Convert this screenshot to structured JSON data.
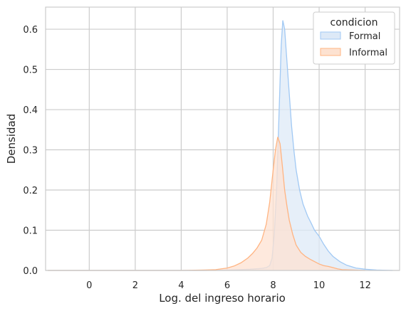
{
  "chart_data": {
    "type": "area",
    "title": "",
    "xlabel": "Log. del ingreso horario",
    "ylabel": "Densidad",
    "xlim": [
      -1.9,
      13.5
    ],
    "ylim": [
      0,
      0.655
    ],
    "xticks": [
      0,
      2,
      4,
      6,
      8,
      10,
      12
    ],
    "yticks": [
      0.0,
      0.1,
      0.2,
      0.3,
      0.4,
      0.5,
      0.6
    ],
    "grid": true,
    "legend": {
      "title": "condicion",
      "placement": "top-right"
    },
    "series": [
      {
        "name": "Formal",
        "color": "#a1c9f4",
        "fill": "#dde9f7",
        "points": [
          [
            -1.8,
            0
          ],
          [
            5.0,
            0
          ],
          [
            6.0,
            0.001
          ],
          [
            6.5,
            0.002
          ],
          [
            7.0,
            0.003
          ],
          [
            7.5,
            0.005
          ],
          [
            7.7,
            0.007
          ],
          [
            7.85,
            0.012
          ],
          [
            7.95,
            0.03
          ],
          [
            8.05,
            0.09
          ],
          [
            8.15,
            0.2
          ],
          [
            8.25,
            0.38
          ],
          [
            8.35,
            0.56
          ],
          [
            8.42,
            0.622
          ],
          [
            8.5,
            0.6
          ],
          [
            8.6,
            0.52
          ],
          [
            8.7,
            0.44
          ],
          [
            8.8,
            0.36
          ],
          [
            8.9,
            0.3
          ],
          [
            9.0,
            0.25
          ],
          [
            9.15,
            0.2
          ],
          [
            9.3,
            0.165
          ],
          [
            9.5,
            0.135
          ],
          [
            9.65,
            0.118
          ],
          [
            9.8,
            0.1
          ],
          [
            10.0,
            0.085
          ],
          [
            10.2,
            0.065
          ],
          [
            10.4,
            0.048
          ],
          [
            10.6,
            0.035
          ],
          [
            10.9,
            0.022
          ],
          [
            11.2,
            0.013
          ],
          [
            11.6,
            0.006
          ],
          [
            12.0,
            0.003
          ],
          [
            12.5,
            0.001
          ],
          [
            13.2,
            0
          ]
        ]
      },
      {
        "name": "Informal",
        "color": "#ffb482",
        "fill": "#fde2d1",
        "points": [
          [
            -1.8,
            0
          ],
          [
            4.0,
            0
          ],
          [
            5.0,
            0.001
          ],
          [
            5.5,
            0.002
          ],
          [
            6.0,
            0.006
          ],
          [
            6.3,
            0.011
          ],
          [
            6.6,
            0.019
          ],
          [
            6.9,
            0.031
          ],
          [
            7.1,
            0.042
          ],
          [
            7.3,
            0.056
          ],
          [
            7.5,
            0.075
          ],
          [
            7.7,
            0.115
          ],
          [
            7.85,
            0.17
          ],
          [
            8.0,
            0.25
          ],
          [
            8.1,
            0.3
          ],
          [
            8.2,
            0.332
          ],
          [
            8.3,
            0.315
          ],
          [
            8.4,
            0.26
          ],
          [
            8.5,
            0.2
          ],
          [
            8.6,
            0.16
          ],
          [
            8.7,
            0.125
          ],
          [
            8.85,
            0.09
          ],
          [
            9.0,
            0.063
          ],
          [
            9.2,
            0.045
          ],
          [
            9.4,
            0.035
          ],
          [
            9.6,
            0.028
          ],
          [
            9.8,
            0.022
          ],
          [
            10.0,
            0.016
          ],
          [
            10.2,
            0.012
          ],
          [
            10.4,
            0.01
          ],
          [
            10.6,
            0.007
          ],
          [
            10.8,
            0.004
          ],
          [
            11.0,
            0.002
          ],
          [
            11.5,
            0.001
          ],
          [
            12.0,
            0
          ]
        ]
      }
    ]
  }
}
